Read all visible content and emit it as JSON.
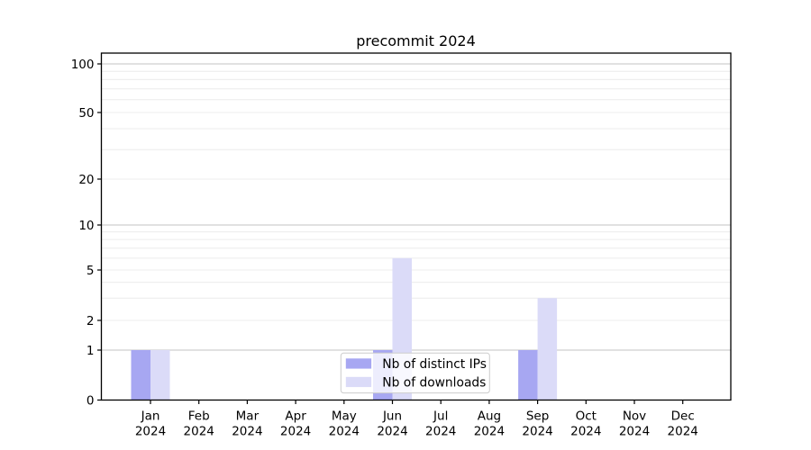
{
  "chart_data": {
    "type": "bar",
    "title": "precommit 2024",
    "categories": [
      "Jan",
      "Feb",
      "Mar",
      "Apr",
      "May",
      "Jun",
      "Jul",
      "Aug",
      "Sep",
      "Oct",
      "Nov",
      "Dec"
    ],
    "x_tick_year_line": "2024",
    "series": [
      {
        "name": "Nb of distinct IPs",
        "color": "#a7a7f2",
        "values": [
          1,
          0,
          0,
          0,
          0,
          1,
          0,
          0,
          1,
          0,
          0,
          0
        ]
      },
      {
        "name": "Nb of downloads",
        "color": "#dbdbf8",
        "values": [
          1,
          0,
          0,
          0,
          0,
          6,
          0,
          0,
          3,
          0,
          0,
          0
        ]
      }
    ],
    "yscale": "symlog",
    "ylabel": "",
    "xlabel": "",
    "y_tick_labels": [
      "0",
      "1",
      "2",
      "5",
      "10",
      "20",
      "50",
      "100"
    ],
    "y_tick_values": [
      0,
      1,
      2,
      5,
      10,
      20,
      50,
      100
    ],
    "y_major_gridlines": [
      1,
      10,
      100
    ],
    "y_minor_gridlines": [
      2,
      3,
      4,
      5,
      6,
      7,
      8,
      9,
      20,
      30,
      40,
      50,
      60,
      70,
      80,
      90
    ],
    "ylim": [
      0,
      115
    ],
    "grid": "horizontal",
    "legend_position": "lower center",
    "colors": {
      "major_grid": "#c3c3c3",
      "minor_grid": "#ececec",
      "spine": "#000000",
      "legend_border": "#cccccc",
      "legend_bg": "rgba(255,255,255,0.8)"
    }
  }
}
